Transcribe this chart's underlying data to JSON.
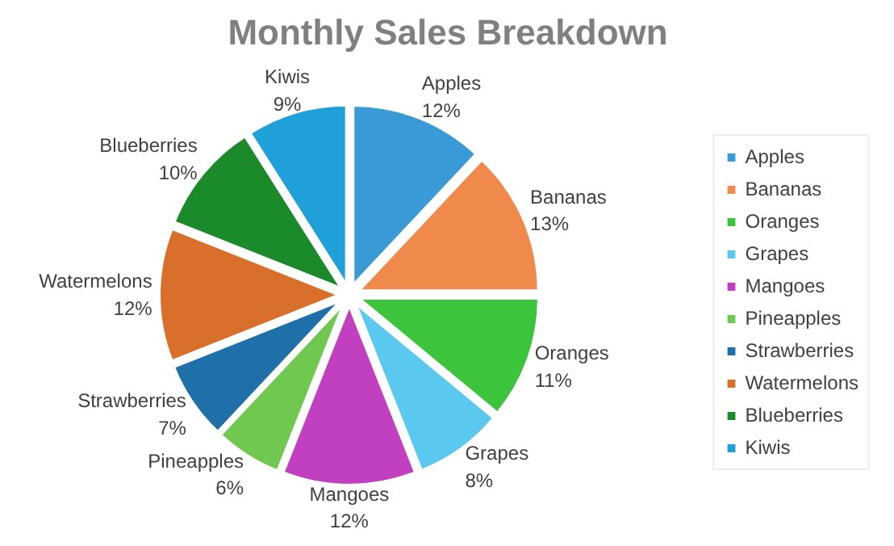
{
  "chart_data": {
    "type": "pie",
    "title": "Monthly Sales Breakdown",
    "categories": [
      "Apples",
      "Bananas",
      "Oranges",
      "Grapes",
      "Mangoes",
      "Pineapples",
      "Strawberries",
      "Watermelons",
      "Blueberries",
      "Kiwis"
    ],
    "values": [
      12,
      13,
      11,
      8,
      12,
      6,
      7,
      12,
      10,
      9
    ],
    "value_labels": [
      "12%",
      "13%",
      "11%",
      "8%",
      "12%",
      "6%",
      "7%",
      "12%",
      "10%",
      "9%"
    ],
    "colors": [
      "#3a9ad6",
      "#ef8a4c",
      "#3cc43c",
      "#5bc8f0",
      "#c040c0",
      "#70c850",
      "#1f6fa8",
      "#d8702c",
      "#1a8a2a",
      "#1fa0d8"
    ],
    "legend": "right"
  }
}
